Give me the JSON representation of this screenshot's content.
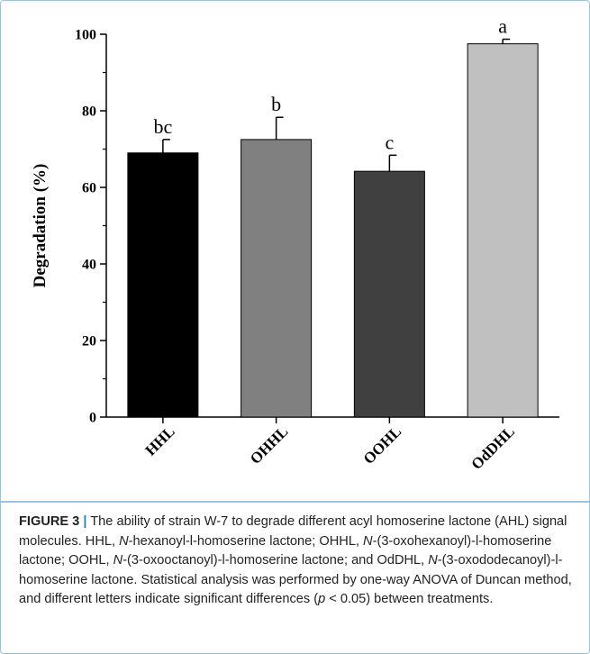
{
  "chart_data": {
    "type": "bar",
    "title": "",
    "xlabel": "",
    "ylabel": "Degradation (%)",
    "ylim": [
      0,
      100
    ],
    "yticks": [
      0,
      20,
      40,
      60,
      80,
      100
    ],
    "categories": [
      "HHL",
      "OHHL",
      "OOHL",
      "OdDHL"
    ],
    "values": [
      69,
      72.5,
      64.2,
      97.5
    ],
    "errors": [
      3.5,
      5.8,
      4.2,
      1.2
    ],
    "significance_letters": [
      "bc",
      "b",
      "c",
      "a"
    ],
    "bar_colors": [
      "#000000",
      "#808080",
      "#404040",
      "#c0c0c0"
    ],
    "grid": false,
    "legend": "none"
  },
  "caption": {
    "label": "FIGURE 3",
    "separator": "|",
    "segments": [
      {
        "text": " The ability of strain W-7 to degrade different acyl homoserine lactone (AHL) signal molecules. HHL, ",
        "italic": false
      },
      {
        "text": "N",
        "italic": true
      },
      {
        "text": "-hexanoyl-l-homoserine lactone; OHHL, ",
        "italic": false
      },
      {
        "text": "N",
        "italic": true
      },
      {
        "text": "-(3-oxohexanoyl)-l-homoserine lactone; OOHL, ",
        "italic": false
      },
      {
        "text": "N",
        "italic": true
      },
      {
        "text": "-(3-oxooctanoyl)-l-homoserine lactone; and OdDHL, ",
        "italic": false
      },
      {
        "text": "N",
        "italic": true
      },
      {
        "text": "-(3-oxododecanoyl)-l-homoserine lactone. Statistical analysis was performed by one-way ANOVA of Duncan method, and different letters indicate significant differences (",
        "italic": false
      },
      {
        "text": "p",
        "italic": true
      },
      {
        "text": " < 0.05) between treatments.",
        "italic": false
      }
    ]
  }
}
